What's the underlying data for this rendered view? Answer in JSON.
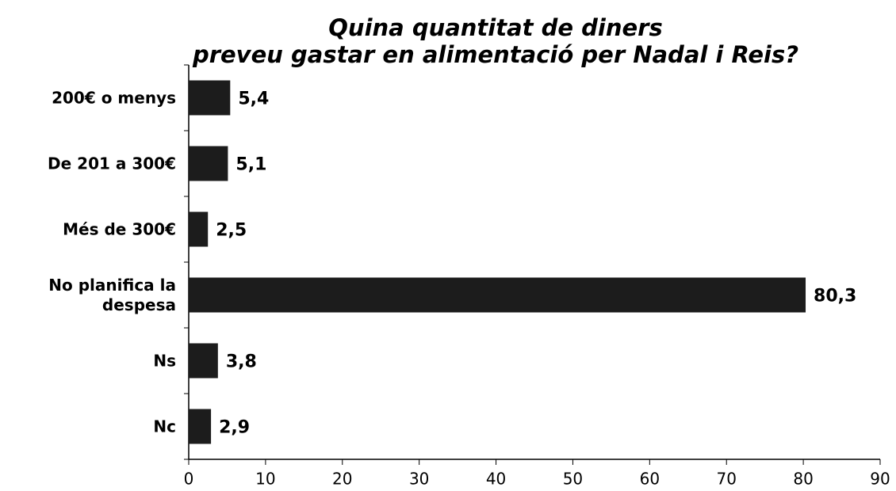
{
  "chart_data": {
    "type": "bar",
    "orientation": "horizontal",
    "title": "Quina quantitat de diners\npreveu gastar en alimentació per Nadal i Reis?",
    "categories": [
      "200€ o menys",
      "De 201 a 300€",
      "Més de 300€",
      "No planifica la\ndespesa",
      "Ns",
      "Nc"
    ],
    "values": [
      5.4,
      5.1,
      2.5,
      80.3,
      3.8,
      2.9
    ],
    "value_labels": [
      "5,4",
      "5,1",
      "2,5",
      "80,3",
      "3,8",
      "2,9"
    ],
    "color": "#1c1c1c",
    "xlim": [
      0,
      90
    ],
    "xticks": [
      0,
      10,
      20,
      30,
      40,
      50,
      60,
      70,
      80,
      90
    ]
  }
}
